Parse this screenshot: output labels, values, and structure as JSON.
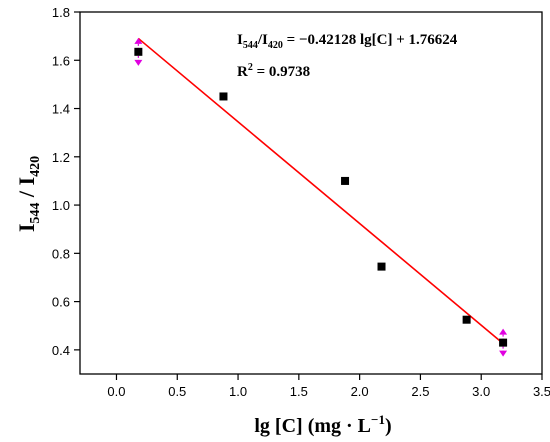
{
  "chart_data": {
    "type": "scatter",
    "title": "",
    "xlabel": {
      "main": "lg [C] (mg · L",
      "sup": "−1",
      "tail": ")"
    },
    "ylabel": {
      "a": "I",
      "a_sub": "544",
      "mid": " / I",
      "b_sub": "420"
    },
    "xlim": [
      -0.3,
      3.5
    ],
    "ylim": [
      0.3,
      1.8
    ],
    "xticks": [
      0.0,
      0.5,
      1.0,
      1.5,
      2.0,
      2.5,
      3.0,
      3.5
    ],
    "xtick_labels": [
      "0.0",
      "0.5",
      "1.0",
      "1.5",
      "2.0",
      "2.5",
      "3.0",
      "3.5"
    ],
    "yticks": [
      0.4,
      0.6,
      0.8,
      1.0,
      1.2,
      1.4,
      1.6,
      1.8
    ],
    "ytick_labels": [
      "0.4",
      "0.6",
      "0.8",
      "1.0",
      "1.2",
      "1.4",
      "1.6",
      "1.8"
    ],
    "grid": false,
    "series": [
      {
        "marker": "square",
        "color": "#000000",
        "x": [
          0.18,
          0.88,
          1.88,
          2.18,
          2.88,
          3.18
        ],
        "y": [
          1.635,
          1.45,
          1.1,
          0.745,
          0.525,
          0.43
        ]
      }
    ],
    "fit_line": {
      "color": "#ff0000",
      "slope": -0.42128,
      "intercept": 1.76624,
      "x_range": [
        0.18,
        3.18
      ]
    },
    "error_markers": {
      "color": "#e000e0",
      "points": [
        [
          0.18,
          1.635
        ],
        [
          3.18,
          0.43
        ]
      ]
    },
    "annotations": {
      "equation": {
        "i1": "I",
        "s1": "544",
        "i2": "/I",
        "s2": "420",
        "rest": " = −0.42128 lg[C] + 1.76624"
      },
      "r2": {
        "r": "R",
        "sup": "2",
        "rest": " = 0.9738"
      }
    }
  }
}
